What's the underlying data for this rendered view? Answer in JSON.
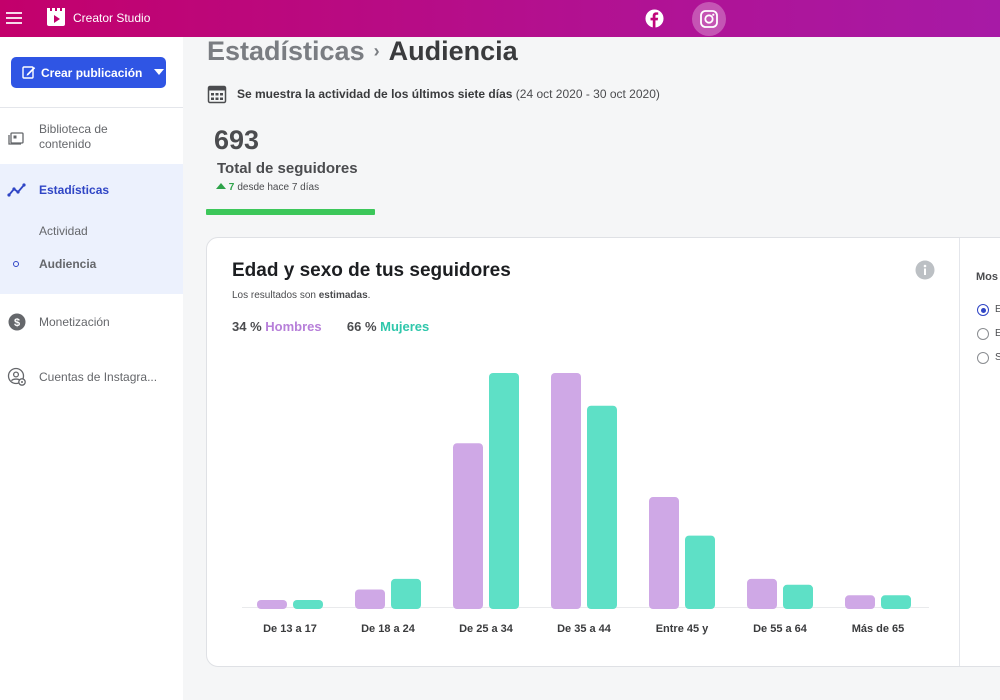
{
  "topbar": {
    "title": "Creator Studio",
    "icons": [
      "menu-icon",
      "creator-studio-logo",
      "facebook-icon",
      "instagram-icon"
    ],
    "accent_color": "#c3006b"
  },
  "sidebar": {
    "create_button": "Crear publicación",
    "items": [
      {
        "label": "Biblioteca de",
        "label2": "contenido",
        "icon": "content-library-icon"
      },
      {
        "label": "Estadísticas",
        "icon": "stats-icon"
      },
      {
        "label": "Actividad"
      },
      {
        "label": "Audiencia"
      },
      {
        "label": "Monetización",
        "icon": "monetization-icon"
      },
      {
        "label": "Cuentas de Instagra...",
        "icon": "accounts-icon"
      }
    ]
  },
  "main": {
    "breadcrumb_parent": "Estadísticas",
    "breadcrumb_current": "Audiencia",
    "activity_note_bold": "Se muestra la actividad de los últimos siete días",
    "activity_range": "(24 oct 2020 - 30 oct 2020)",
    "followers_total": "693",
    "followers_label": "Total de seguidores",
    "growth_value": "7",
    "growth_text": "desde hace 7 días"
  },
  "card": {
    "title": "Edad y sexo de tus seguidores",
    "subtitle_prefix": "Los resultados son ",
    "subtitle_bold": "estimadas",
    "subtitle_suffix": ".",
    "men_pct": "34 %",
    "men_label": "Hombres",
    "women_pct": "66 %",
    "women_label": "Mujeres",
    "side_label": "Mos",
    "radio_options": [
      "E",
      "E",
      "S"
    ]
  },
  "chart_data": {
    "type": "bar",
    "categories": [
      "De 13 a 17",
      "De 18 a 24",
      "De 25 a 34",
      "De 35 a 44",
      "Entre 45 y",
      "De 55 a 64",
      "Más de 65"
    ],
    "series": [
      {
        "name": "Hombres",
        "color": "#cfa8e6",
        "values": [
          3,
          7.5,
          70,
          100,
          47,
          12,
          5
        ]
      },
      {
        "name": "Mujeres",
        "color": "#5ee0c6",
        "values": [
          3,
          12,
          100,
          86,
          30.5,
          9.5,
          5
        ]
      }
    ],
    "ylim": [
      0,
      100
    ]
  }
}
